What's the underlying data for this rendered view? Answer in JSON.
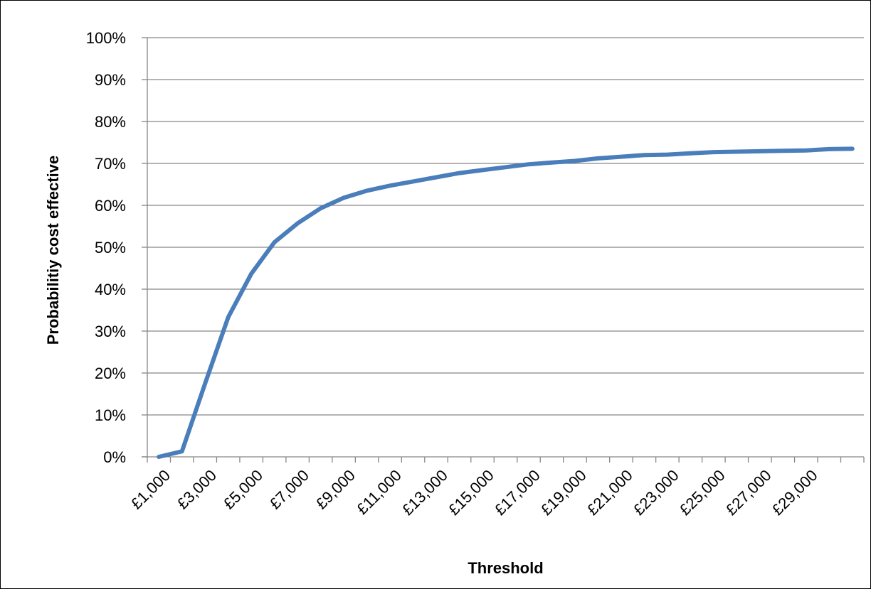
{
  "chart_data": {
    "type": "line",
    "title": "",
    "xlabel": "Threshold",
    "ylabel": "Probabilitiy cost effective",
    "x": [
      1000,
      2000,
      3000,
      4000,
      5000,
      6000,
      7000,
      8000,
      9000,
      10000,
      11000,
      12000,
      13000,
      14000,
      15000,
      16000,
      17000,
      18000,
      19000,
      20000,
      21000,
      22000,
      23000,
      24000,
      25000,
      26000,
      27000,
      28000,
      29000,
      30000,
      31000
    ],
    "x_tick_labels": [
      "£1,000",
      "£3,000",
      "£5,000",
      "£7,000",
      "£9,000",
      "£11,000",
      "£13,000",
      "£15,000",
      "£17,000",
      "£19,000",
      "£21,000",
      "£23,000",
      "£25,000",
      "£27,000",
      "£29,000"
    ],
    "y_tick_labels": [
      "0%",
      "10%",
      "20%",
      "30%",
      "40%",
      "50%",
      "60%",
      "70%",
      "80%",
      "90%",
      "100%"
    ],
    "ylim": [
      0,
      1
    ],
    "grid": true,
    "legend": false,
    "series": [
      {
        "color": "#4a7ebb",
        "values": [
          0.0,
          0.013,
          0.175,
          0.333,
          0.437,
          0.512,
          0.557,
          0.593,
          0.618,
          0.635,
          0.647,
          0.657,
          0.667,
          0.677,
          0.684,
          0.691,
          0.698,
          0.702,
          0.706,
          0.712,
          0.716,
          0.72,
          0.721,
          0.724,
          0.727,
          0.728,
          0.729,
          0.73,
          0.731,
          0.734,
          0.735
        ]
      }
    ]
  }
}
